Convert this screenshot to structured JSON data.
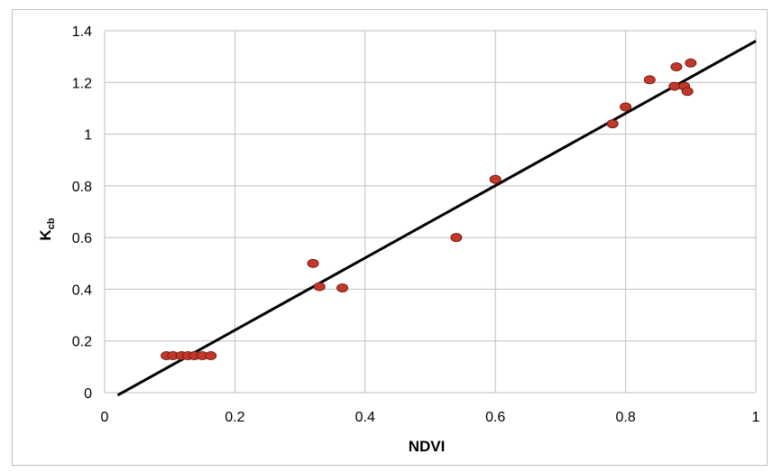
{
  "chart_data": {
    "type": "scatter",
    "xlabel": "NDVI",
    "ylabel_main": "K",
    "ylabel_sub": "cb",
    "xlim": [
      0,
      1
    ],
    "ylim": [
      0,
      1.4
    ],
    "xticks": [
      0,
      0.2,
      0.4,
      0.6,
      0.8,
      1
    ],
    "xtick_labels": [
      "0",
      "0.2",
      "0.4",
      "0.6",
      "0.8",
      "1"
    ],
    "yticks": [
      0,
      0.2,
      0.4,
      0.6,
      0.8,
      1,
      1.2,
      1.4
    ],
    "ytick_labels": [
      "0",
      "0.2",
      "0.4",
      "0.6",
      "0.8",
      "1",
      "1.2",
      "1.4"
    ],
    "grid": true,
    "legend": "none",
    "colors": {
      "points": "#c0392b",
      "points_stroke": "#7a1a14",
      "line": "#000000",
      "grid": "#bfbfbf"
    },
    "points": [
      {
        "x": 0.095,
        "y": 0.143
      },
      {
        "x": 0.105,
        "y": 0.143
      },
      {
        "x": 0.118,
        "y": 0.143
      },
      {
        "x": 0.128,
        "y": 0.143
      },
      {
        "x": 0.138,
        "y": 0.143
      },
      {
        "x": 0.15,
        "y": 0.143
      },
      {
        "x": 0.163,
        "y": 0.143
      },
      {
        "x": 0.32,
        "y": 0.5
      },
      {
        "x": 0.33,
        "y": 0.41
      },
      {
        "x": 0.365,
        "y": 0.405
      },
      {
        "x": 0.54,
        "y": 0.6
      },
      {
        "x": 0.6,
        "y": 0.825
      },
      {
        "x": 0.78,
        "y": 1.04
      },
      {
        "x": 0.8,
        "y": 1.105
      },
      {
        "x": 0.837,
        "y": 1.21
      },
      {
        "x": 0.875,
        "y": 1.185
      },
      {
        "x": 0.878,
        "y": 1.26
      },
      {
        "x": 0.89,
        "y": 1.185
      },
      {
        "x": 0.895,
        "y": 1.165
      },
      {
        "x": 0.9,
        "y": 1.275
      }
    ],
    "fit_line": {
      "x": [
        0.02,
        1
      ],
      "y": [
        -0.01,
        1.36
      ]
    }
  }
}
